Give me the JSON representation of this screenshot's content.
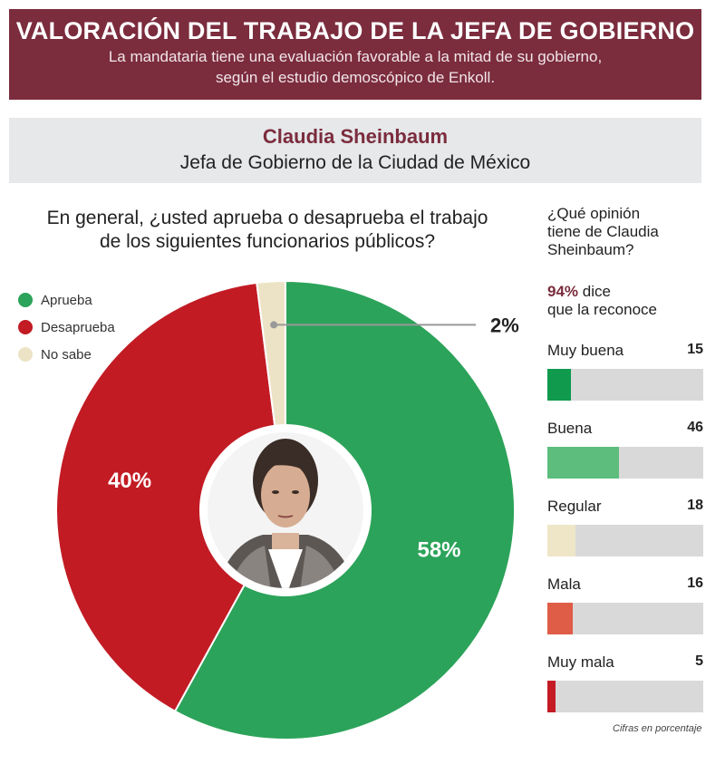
{
  "header": {
    "title": "VALORACIÓN DEL TRABAJO DE LA JEFA DE GOBIERNO",
    "subtitle_line1": "La mandataria tiene una evaluación favorable a la mitad de su gobierno,",
    "subtitle_line2": "según el estudio demoscópico de Enkoll."
  },
  "person": {
    "name": "Claudia Sheinbaum",
    "role": "Jefa de Gobierno de la Ciudad de México"
  },
  "question": {
    "line1": "En general, ¿usted aprueba o desaprueba el trabajo",
    "line2": "de los siguientes funcionarios públicos?"
  },
  "side": {
    "question_line1": "¿Qué opinión",
    "question_line2": "tiene de Claudia",
    "question_line3": "Sheinbaum?",
    "aware_pct": "94%",
    "aware_text1": " dice",
    "aware_text2": "que la reconoce"
  },
  "note": "Cifras en porcentaje",
  "chart_data": [
    {
      "type": "pie",
      "categories": [
        "Aprueba",
        "Desaprueba",
        "No sabe"
      ],
      "values": [
        58,
        40,
        2
      ],
      "labels": [
        "58%",
        "40%",
        "2%"
      ],
      "colors": [
        "#2ca35a",
        "#c21b24",
        "#ece3c6"
      ],
      "legend_position": "top-left"
    },
    {
      "type": "bar",
      "categories": [
        "Muy buena",
        "Buena",
        "Regular",
        "Mala",
        "Muy mala"
      ],
      "values": [
        15,
        46,
        18,
        16,
        5
      ],
      "value_labels": [
        "15",
        "46",
        "18",
        "16",
        "5"
      ],
      "colors": [
        "#0f9a4d",
        "#5cbd7d",
        "#efe6c8",
        "#df5c47",
        "#c41b24"
      ],
      "xlim": [
        0,
        100
      ]
    }
  ]
}
